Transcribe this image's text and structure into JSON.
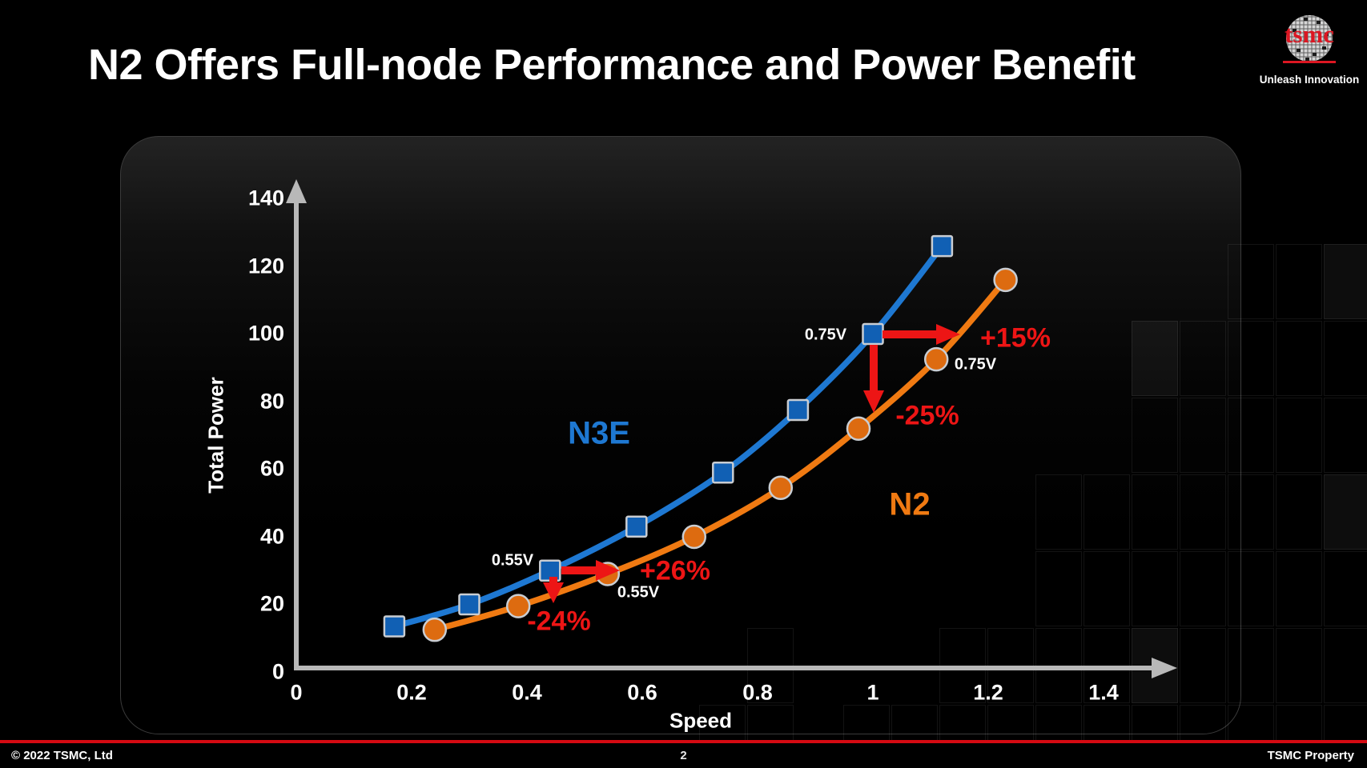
{
  "slide": {
    "title": "N2 Offers Full-node Performance and Power Benefit",
    "page_number": "2",
    "copyright": "© 2022 TSMC, Ltd",
    "property_notice": "TSMC Property",
    "footer_line_color": "#d50a12"
  },
  "logo": {
    "brand": "tsmc",
    "tagline": "Unleash Innovation",
    "brand_color": "#dc1622"
  },
  "chart_data": {
    "type": "line",
    "title": "",
    "xlabel": "Speed",
    "ylabel": "Total Power",
    "xlim": [
      0,
      1.4
    ],
    "ylim": [
      0,
      140
    ],
    "grid": false,
    "legend_position": "inline-curve-labels",
    "x_tick_labels": [
      "0",
      "0.2",
      "0.4",
      "0.6",
      "0.8",
      "1",
      "1.2",
      "1.4"
    ],
    "x_tick_values": [
      0,
      0.2,
      0.4,
      0.6,
      0.8,
      1,
      1.2,
      1.4
    ],
    "y_tick_labels": [
      "0",
      "20",
      "40",
      "60",
      "80",
      "100",
      "120",
      "140"
    ],
    "y_tick_values": [
      0,
      20,
      40,
      60,
      80,
      100,
      120,
      140
    ],
    "axis_color": "#b8b8b8",
    "accent_red": "#ed1515",
    "series": [
      {
        "name": "N3E",
        "marker": "square",
        "line_color": "#1e78d2",
        "marker_color": "#1160b4",
        "marker_stroke": "#c9cdd2",
        "points": [
          [
            0.17,
            13.5
          ],
          [
            0.3,
            20
          ],
          [
            0.44,
            30
          ],
          [
            0.59,
            43
          ],
          [
            0.74,
            59
          ],
          [
            0.87,
            77.5
          ],
          [
            1.0,
            100
          ],
          [
            1.12,
            126
          ]
        ]
      },
      {
        "name": "N2",
        "marker": "circle",
        "line_color": "#f07a12",
        "marker_color": "#dd6b10",
        "marker_stroke": "#c9cdd2",
        "points": [
          [
            0.24,
            12.5
          ],
          [
            0.385,
            19.5
          ],
          [
            0.54,
            29
          ],
          [
            0.69,
            40
          ],
          [
            0.84,
            54.5
          ],
          [
            0.975,
            72
          ],
          [
            1.11,
            92.5
          ],
          [
            1.23,
            116
          ]
        ]
      }
    ],
    "annotations": {
      "n3e_voltage_low": "0.55V",
      "n2_voltage_low": "0.55V",
      "n3e_voltage_high": "0.75V",
      "n2_voltage_high": "0.75V",
      "speed_gain_at_055": "+26%",
      "power_saving_at_055": "-24%",
      "speed_gain_at_075": "+15%",
      "power_saving_at_075": "-25%"
    }
  }
}
